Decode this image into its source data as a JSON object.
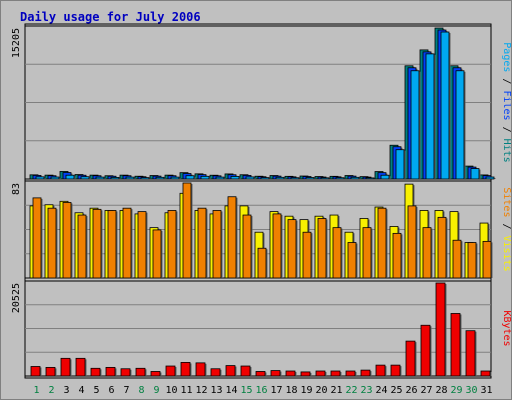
{
  "title": "Daily usage for July 2006",
  "colors": {
    "pages": "#00a8f0",
    "files": "#0040f8",
    "hits": "#008080",
    "visits": "#f8f000",
    "sites": "#f08000",
    "kbytes": "#f00000",
    "weekend_day": "#008040",
    "weekday_day": "#000000"
  },
  "chart_data": [
    {
      "type": "bar",
      "name": "top",
      "max_label": "15205",
      "ymax": 15205,
      "right_label": [
        {
          "text": "Pages",
          "color": "#00a8f0"
        },
        {
          "text": " / ",
          "color": "#000000"
        },
        {
          "text": "Files",
          "color": "#0040f8"
        },
        {
          "text": " / ",
          "color": "#000000"
        },
        {
          "text": "Hits",
          "color": "#008080"
        }
      ],
      "series": [
        {
          "key": "hits",
          "color": "#008080",
          "values": [
            420,
            390,
            760,
            450,
            390,
            330,
            390,
            280,
            350,
            390,
            640,
            520,
            380,
            510,
            430,
            280,
            350,
            270,
            300,
            250,
            270,
            350,
            240,
            750,
            3400,
            11400,
            13000,
            15200,
            11400,
            1300,
            410
          ]
        },
        {
          "key": "files",
          "color": "#0040f8",
          "values": [
            360,
            330,
            650,
            380,
            330,
            280,
            330,
            230,
            290,
            330,
            550,
            440,
            320,
            430,
            360,
            230,
            290,
            220,
            250,
            200,
            220,
            290,
            190,
            640,
            3250,
            11200,
            12800,
            15000,
            11200,
            1200,
            340
          ]
        },
        {
          "key": "pages",
          "color": "#00a8f0",
          "values": [
            220,
            200,
            380,
            230,
            190,
            160,
            190,
            140,
            170,
            190,
            330,
            270,
            190,
            260,
            210,
            140,
            170,
            130,
            150,
            120,
            130,
            170,
            110,
            380,
            2950,
            10900,
            12600,
            14800,
            10900,
            1050,
            200
          ]
        }
      ]
    },
    {
      "type": "bar",
      "name": "middle",
      "max_label": "83",
      "ymax": 83,
      "right_label": [
        {
          "text": "Sites",
          "color": "#f08000"
        },
        {
          "text": " / ",
          "color": "#000000"
        },
        {
          "text": "Visits",
          "color": "#f8f000"
        }
      ],
      "series": [
        {
          "key": "visits",
          "color": "#f8f000",
          "values": [
            63,
            64,
            67,
            57,
            61,
            59,
            59,
            56,
            44,
            57,
            74,
            59,
            56,
            63,
            63,
            40,
            58,
            54,
            51,
            54,
            55,
            40,
            52,
            62,
            45,
            82,
            59,
            59,
            58,
            31,
            48
          ]
        },
        {
          "key": "sites",
          "color": "#f08000",
          "values": [
            70,
            61,
            66,
            55,
            60,
            59,
            61,
            58,
            42,
            59,
            83,
            61,
            59,
            71,
            55,
            26,
            56,
            51,
            40,
            52,
            44,
            31,
            44,
            61,
            39,
            63,
            44,
            53,
            33,
            31,
            32
          ]
        }
      ]
    },
    {
      "type": "bar",
      "name": "bottom",
      "max_label": "20525",
      "ymax": 20525,
      "right_label": [
        {
          "text": "KBytes",
          "color": "#f00000"
        }
      ],
      "series": [
        {
          "key": "kbytes",
          "color": "#f00000",
          "values": [
            2100,
            1900,
            3900,
            3900,
            1700,
            1900,
            1600,
            1700,
            1000,
            2200,
            3000,
            2900,
            1600,
            2300,
            2200,
            1000,
            1200,
            1100,
            900,
            1100,
            1100,
            1100,
            1300,
            2400,
            2400,
            7700,
            11200,
            20525,
            13800,
            10000,
            1100
          ]
        }
      ]
    }
  ],
  "days": [
    {
      "label": "1",
      "weekend": true
    },
    {
      "label": "2",
      "weekend": true
    },
    {
      "label": "3",
      "weekend": false
    },
    {
      "label": "4",
      "weekend": false
    },
    {
      "label": "5",
      "weekend": false
    },
    {
      "label": "6",
      "weekend": false
    },
    {
      "label": "7",
      "weekend": false
    },
    {
      "label": "8",
      "weekend": true
    },
    {
      "label": "9",
      "weekend": true
    },
    {
      "label": "10",
      "weekend": false
    },
    {
      "label": "11",
      "weekend": false
    },
    {
      "label": "12",
      "weekend": false
    },
    {
      "label": "13",
      "weekend": false
    },
    {
      "label": "14",
      "weekend": false
    },
    {
      "label": "15",
      "weekend": true
    },
    {
      "label": "16",
      "weekend": true
    },
    {
      "label": "17",
      "weekend": false
    },
    {
      "label": "18",
      "weekend": false
    },
    {
      "label": "19",
      "weekend": false
    },
    {
      "label": "20",
      "weekend": false
    },
    {
      "label": "21",
      "weekend": false
    },
    {
      "label": "22",
      "weekend": true
    },
    {
      "label": "23",
      "weekend": true
    },
    {
      "label": "24",
      "weekend": false
    },
    {
      "label": "25",
      "weekend": false
    },
    {
      "label": "26",
      "weekend": false
    },
    {
      "label": "27",
      "weekend": false
    },
    {
      "label": "28",
      "weekend": false
    },
    {
      "label": "29",
      "weekend": true
    },
    {
      "label": "30",
      "weekend": true
    },
    {
      "label": "31",
      "weekend": false
    }
  ]
}
